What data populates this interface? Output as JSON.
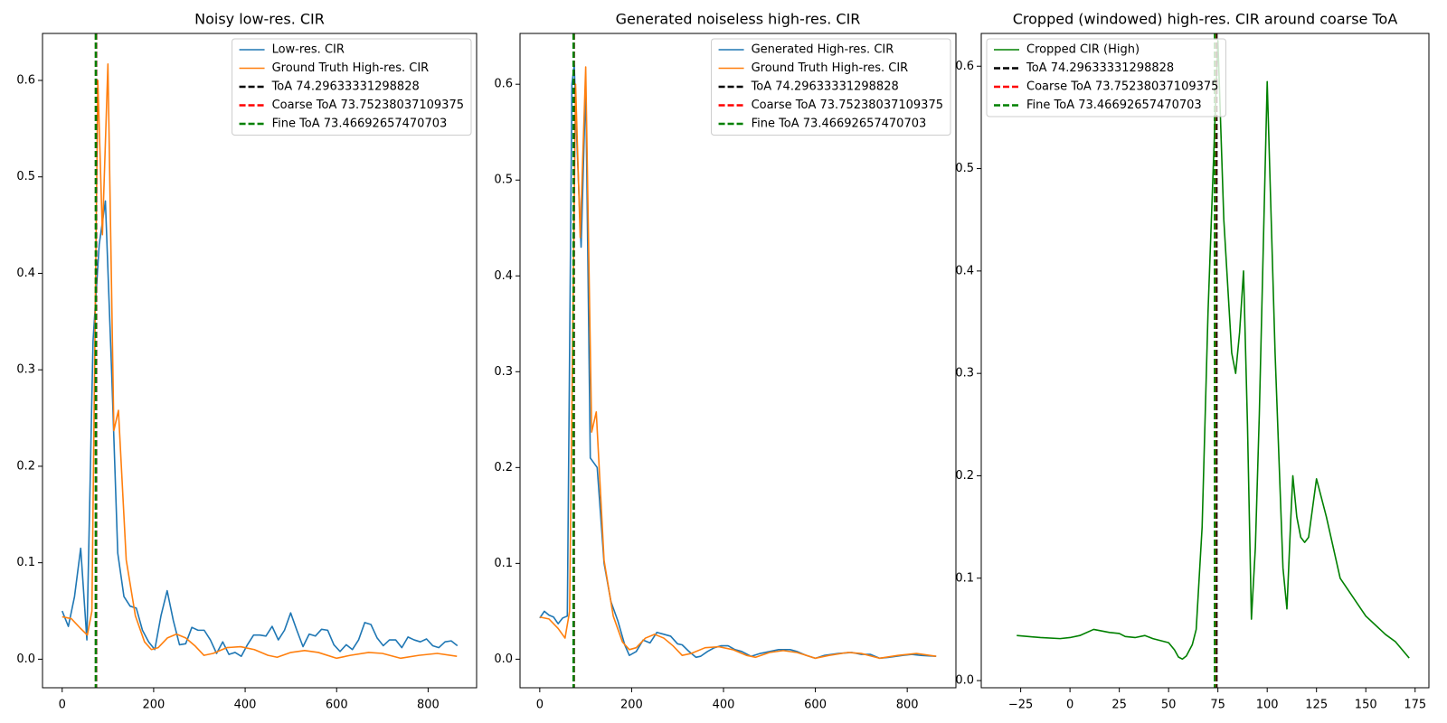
{
  "chart_data": [
    {
      "type": "line",
      "title": "Noisy low-res. CIR",
      "xlim": [
        -43,
        906
      ],
      "ylim": [
        -0.0296,
        0.6487
      ],
      "xticks": [
        0,
        200,
        400,
        600,
        800
      ],
      "yticks": [
        {
          "value": 0,
          "label": "0.0"
        },
        0.1,
        0.2,
        0.3,
        0.4,
        0.5,
        0.6
      ],
      "legend": "upper right",
      "series": [
        {
          "name": "Low-res. CIR",
          "color": "#1f77b4",
          "x": [
            0,
            13.5,
            27,
            40.5,
            54,
            67.5,
            81,
            94.5,
            108,
            121.5,
            135,
            148.5,
            162,
            175.5,
            189,
            202.5,
            216,
            229.5,
            243,
            256.5,
            270,
            283.5,
            297,
            310.5,
            324,
            337.5,
            351,
            364.5,
            378,
            391.5,
            405,
            418.5,
            432,
            445.5,
            459,
            472.5,
            486,
            499.5,
            513,
            526.5,
            540,
            553.5,
            567,
            580.5,
            594,
            607.5,
            621,
            634.5,
            648,
            661.5,
            675,
            688.5,
            702,
            715.5,
            729,
            742.5,
            756,
            769.5,
            783,
            796.5,
            810,
            823.5,
            837,
            850.5,
            864
          ],
          "values": [
            0.05,
            0.034,
            0.065,
            0.115,
            0.02,
            0.33,
            0.43,
            0.475,
            0.3,
            0.11,
            0.065,
            0.055,
            0.053,
            0.03,
            0.018,
            0.01,
            0.045,
            0.071,
            0.04,
            0.015,
            0.016,
            0.033,
            0.03,
            0.03,
            0.02,
            0.006,
            0.018,
            0.005,
            0.007,
            0.003,
            0.015,
            0.025,
            0.025,
            0.024,
            0.034,
            0.02,
            0.03,
            0.048,
            0.03,
            0.013,
            0.026,
            0.024,
            0.031,
            0.03,
            0.015,
            0.008,
            0.015,
            0.01,
            0.02,
            0.038,
            0.036,
            0.022,
            0.014,
            0.02,
            0.02,
            0.012,
            0.023,
            0.02,
            0.018,
            0.021,
            0.014,
            0.012,
            0.018,
            0.019,
            0.014
          ]
        },
        {
          "name": "Ground Truth High-res. CIR",
          "color": "#ff7f0e",
          "x": [
            0,
            20,
            40,
            55,
            65,
            72,
            78,
            88,
            100,
            113,
            123,
            140,
            160,
            180,
            195,
            210,
            230,
            250,
            270,
            290,
            310,
            330,
            360,
            390,
            420,
            450,
            470,
            500,
            530,
            560,
            600,
            630,
            670,
            700,
            740,
            780,
            820,
            863
          ],
          "values": [
            0.044,
            0.042,
            0.032,
            0.025,
            0.05,
            0.35,
            0.6,
            0.44,
            0.617,
            0.237,
            0.258,
            0.103,
            0.045,
            0.018,
            0.01,
            0.012,
            0.022,
            0.026,
            0.022,
            0.014,
            0.004,
            0.006,
            0.012,
            0.013,
            0.01,
            0.004,
            0.002,
            0.007,
            0.009,
            0.007,
            0.001,
            0.004,
            0.007,
            0.006,
            0.001,
            0.004,
            0.006,
            0.003
          ]
        }
      ],
      "vlines": [
        {
          "name": "ToA 74.29633331298828",
          "color": "#000000",
          "x": 74.29633331298828,
          "style": "dashed"
        },
        {
          "name": "Coarse ToA 73.75238037109375",
          "color": "#ff0000",
          "x": 73.75238037109375,
          "style": "dashed"
        },
        {
          "name": "Fine ToA 73.46692657470703",
          "color": "#008000",
          "x": 73.46692657470703,
          "style": "dashed"
        }
      ]
    },
    {
      "type": "line",
      "title": "Generated noiseless high-res. CIR",
      "xlim": [
        -43,
        906
      ],
      "ylim": [
        -0.0298,
        0.653
      ],
      "xticks": [
        0,
        200,
        400,
        600,
        800
      ],
      "yticks": [
        {
          "value": 0,
          "label": "0.0"
        },
        0.1,
        0.2,
        0.3,
        0.4,
        0.5,
        0.6
      ],
      "legend": "upper right",
      "series": [
        {
          "name": "Generated High-res. CIR",
          "color": "#1f77b4",
          "x": [
            0,
            10,
            20,
            30,
            40,
            50,
            60,
            70,
            75,
            80,
            90,
            100,
            110,
            125,
            140,
            155,
            170,
            185,
            195,
            210,
            225,
            240,
            255,
            270,
            285,
            300,
            310,
            325,
            340,
            350,
            365,
            380,
            395,
            410,
            425,
            440,
            460,
            480,
            500,
            520,
            545,
            560,
            580,
            600,
            620,
            650,
            680,
            700,
            720,
            740,
            760,
            790,
            810,
            830,
            863
          ],
          "values": [
            0.043,
            0.05,
            0.046,
            0.044,
            0.037,
            0.043,
            0.045,
            0.6,
            0.62,
            0.55,
            0.43,
            0.6,
            0.21,
            0.2,
            0.1,
            0.06,
            0.04,
            0.015,
            0.004,
            0.008,
            0.02,
            0.017,
            0.028,
            0.026,
            0.024,
            0.016,
            0.015,
            0.008,
            0.002,
            0.003,
            0.008,
            0.012,
            0.014,
            0.014,
            0.01,
            0.008,
            0.003,
            0.006,
            0.008,
            0.01,
            0.01,
            0.008,
            0.004,
            0.001,
            0.004,
            0.006,
            0.007,
            0.005,
            0.005,
            0.001,
            0.002,
            0.004,
            0.005,
            0.004,
            0.003
          ]
        },
        {
          "name": "Ground Truth High-res. CIR",
          "color": "#ff7f0e",
          "x": [
            0,
            20,
            40,
            55,
            65,
            72,
            78,
            88,
            100,
            113,
            123,
            140,
            160,
            180,
            195,
            210,
            230,
            250,
            270,
            290,
            310,
            330,
            360,
            390,
            420,
            450,
            470,
            500,
            530,
            560,
            600,
            630,
            670,
            700,
            740,
            780,
            820,
            863
          ],
          "values": [
            0.044,
            0.042,
            0.032,
            0.022,
            0.05,
            0.35,
            0.6,
            0.44,
            0.618,
            0.237,
            0.258,
            0.103,
            0.045,
            0.018,
            0.01,
            0.012,
            0.022,
            0.026,
            0.022,
            0.014,
            0.004,
            0.006,
            0.012,
            0.013,
            0.01,
            0.004,
            0.002,
            0.007,
            0.009,
            0.007,
            0.001,
            0.004,
            0.007,
            0.006,
            0.001,
            0.004,
            0.006,
            0.003
          ]
        }
      ],
      "vlines": [
        {
          "name": "ToA 74.29633331298828",
          "color": "#000000",
          "x": 74.29633331298828,
          "style": "dashed"
        },
        {
          "name": "Coarse ToA 73.75238037109375",
          "color": "#ff0000",
          "x": 73.75238037109375,
          "style": "dashed"
        },
        {
          "name": "Fine ToA 73.46692657470703",
          "color": "#008000",
          "x": 73.46692657470703,
          "style": "dashed"
        }
      ]
    },
    {
      "type": "line",
      "title": "Cropped (windowed) high-res. CIR around coarse ToA",
      "xlim": [
        -45,
        182
      ],
      "ylim": [
        -0.007,
        0.632
      ],
      "xticks": [
        {
          "value": -25,
          "label": "−25"
        },
        0,
        25,
        50,
        75,
        100,
        125,
        150,
        175
      ],
      "yticks": [
        {
          "value": 0,
          "label": "0.0"
        },
        0.1,
        0.2,
        0.3,
        0.4,
        0.5,
        0.6
      ],
      "legend": "upper left",
      "series": [
        {
          "name": "Cropped CIR (High)",
          "color": "#008000",
          "x": [
            -27,
            -15,
            -5,
            0,
            5,
            12,
            20,
            25,
            28,
            33,
            38,
            42,
            50,
            53,
            55,
            57,
            59,
            62,
            64,
            67,
            70,
            73,
            75,
            78,
            82,
            84,
            86,
            88,
            90,
            92,
            94,
            96,
            100,
            104,
            108,
            110,
            112,
            113,
            115,
            117,
            119,
            121,
            125,
            130,
            137,
            150,
            160,
            165,
            172
          ],
          "values": [
            0.044,
            0.042,
            0.041,
            0.042,
            0.044,
            0.05,
            0.047,
            0.046,
            0.043,
            0.042,
            0.044,
            0.041,
            0.037,
            0.03,
            0.023,
            0.021,
            0.024,
            0.035,
            0.05,
            0.15,
            0.36,
            0.52,
            0.625,
            0.45,
            0.32,
            0.3,
            0.34,
            0.4,
            0.25,
            0.06,
            0.13,
            0.26,
            0.585,
            0.32,
            0.11,
            0.07,
            0.16,
            0.2,
            0.16,
            0.14,
            0.135,
            0.14,
            0.197,
            0.16,
            0.1,
            0.063,
            0.045,
            0.038,
            0.022
          ]
        }
      ],
      "vlines": [
        {
          "name": "ToA 74.29633331298828",
          "color": "#000000",
          "x": 74.29633331298828,
          "style": "dashed"
        },
        {
          "name": "Coarse ToA 73.75238037109375",
          "color": "#ff0000",
          "x": 73.75238037109375,
          "style": "dashed"
        },
        {
          "name": "Fine ToA 73.46692657470703",
          "color": "#008000",
          "x": 73.46692657470703,
          "style": "dashed"
        }
      ]
    }
  ]
}
